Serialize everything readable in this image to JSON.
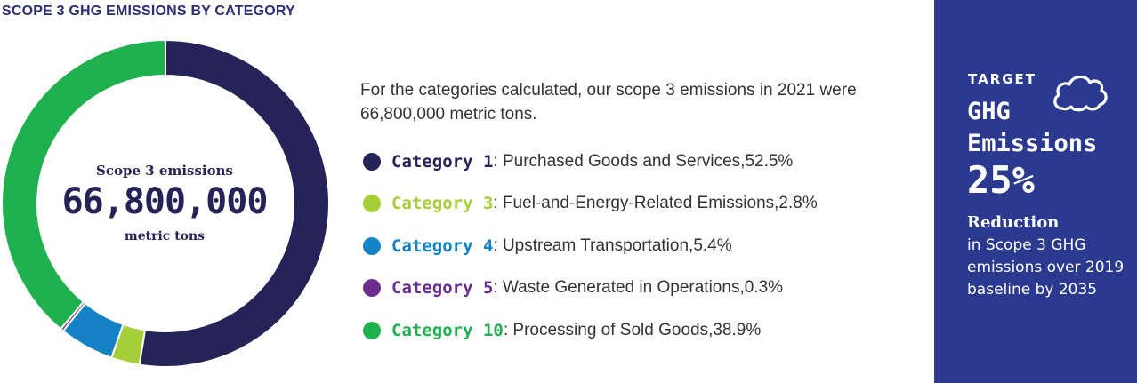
{
  "page_title": "SCOPE 3 GHG EMISSIONS BY CATEGORY",
  "center": {
    "label": "Scope 3 emissions",
    "value": "66,800,000",
    "unit": "metric tons"
  },
  "intro": "For the categories calculated, our scope 3 emissions in 2021 were 66,800,000 metric tons.",
  "chart_data": {
    "type": "pie",
    "title": "SCOPE 3 GHG EMISSIONS BY CATEGORY",
    "series": [
      {
        "name": "Category 1",
        "label": "Purchased Goods and Services",
        "value": 52.5,
        "value_text": "52.5%",
        "color": "#262359"
      },
      {
        "name": "Category 3",
        "label": "Fuel-and-Energy-Related Emissions",
        "value": 2.8,
        "value_text": "2.8%",
        "color": "#a6ce39"
      },
      {
        "name": "Category 4",
        "label": "Upstream Transportation",
        "value": 5.4,
        "value_text": "5.4%",
        "color": "#1582c5"
      },
      {
        "name": "Category 5",
        "label": "Waste Generated in Operations",
        "value": 0.3,
        "value_text": "0.3%",
        "color": "#6b2d90"
      },
      {
        "name": "Category 10",
        "label": "Processing of Sold Goods",
        "value": 38.9,
        "value_text": "38.9%",
        "color": "#20b14f"
      }
    ]
  },
  "target_panel": {
    "eyebrow": "TARGET",
    "headline_1": "GHG",
    "headline_2": "Emissions",
    "percent": "25%",
    "subhead": "Reduction",
    "description": "in Scope 3 GHG emissions over 2019 baseline by 2035",
    "background": "#2b3a8f",
    "icon": "cloud-icon"
  }
}
